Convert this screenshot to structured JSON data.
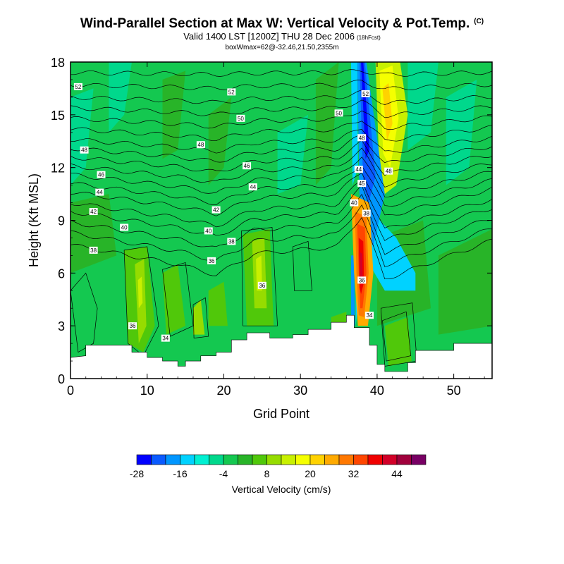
{
  "title": "Wind-Parallel Section at Max W: Vertical Velocity & Pot.Temp.",
  "title_tag": "(C)",
  "subtitle": "Valid 1400 LST [1200Z] THU 28 Dec 2006",
  "subtitle_small": "(18hFcst)",
  "info_line": "boxWmax=62@-32.46,21.50,2355m",
  "chart_data": {
    "type": "heatmap",
    "xlabel": "Grid Point",
    "ylabel": "Height (Kft MSL)",
    "xlim": [
      0,
      55
    ],
    "ylim": [
      0,
      18
    ],
    "x_ticks": [
      0,
      10,
      20,
      30,
      40,
      50
    ],
    "y_ticks": [
      0,
      3,
      6,
      9,
      12,
      15,
      18
    ],
    "colorbar": {
      "label": "Vertical Velocity (cm/s)",
      "tick_labels": [
        "-28",
        "-16",
        "-4",
        "8",
        "20",
        "32",
        "44"
      ],
      "colors": [
        "#0000ff",
        "#0a5aff",
        "#0096ff",
        "#00d2ff",
        "#00f0d2",
        "#00d88c",
        "#14c850",
        "#28b428",
        "#50c80a",
        "#96dc00",
        "#c8f000",
        "#f5ff00",
        "#ffd200",
        "#ffaa00",
        "#ff7800",
        "#ff4600",
        "#f00000",
        "#d20028",
        "#a0003c",
        "#780064"
      ]
    },
    "contour_series_name": "Potential Temperature",
    "contour_labels": [
      {
        "text": "52",
        "x": 1,
        "y": 16.6
      },
      {
        "text": "52",
        "x": 21,
        "y": 16.3
      },
      {
        "text": "50",
        "x": 22.2,
        "y": 14.8
      },
      {
        "text": "50",
        "x": 35,
        "y": 15.1
      },
      {
        "text": "52",
        "x": 38.5,
        "y": 16.2
      },
      {
        "text": "48",
        "x": 1.8,
        "y": 13
      },
      {
        "text": "48",
        "x": 17,
        "y": 13.3
      },
      {
        "text": "48",
        "x": 38,
        "y": 13.7
      },
      {
        "text": "46",
        "x": 4,
        "y": 11.6
      },
      {
        "text": "46",
        "x": 23,
        "y": 12.1
      },
      {
        "text": "44",
        "x": 3.8,
        "y": 10.6
      },
      {
        "text": "44",
        "x": 23.8,
        "y": 10.9
      },
      {
        "text": "44",
        "x": 37.6,
        "y": 11.9
      },
      {
        "text": "48",
        "x": 41.5,
        "y": 11.8
      },
      {
        "text": "45",
        "x": 38,
        "y": 11.1
      },
      {
        "text": "42",
        "x": 3,
        "y": 9.5
      },
      {
        "text": "42",
        "x": 19,
        "y": 9.6
      },
      {
        "text": "40",
        "x": 7,
        "y": 8.6
      },
      {
        "text": "40",
        "x": 18,
        "y": 8.4
      },
      {
        "text": "40",
        "x": 37,
        "y": 10
      },
      {
        "text": "38",
        "x": 38.6,
        "y": 9.4
      },
      {
        "text": "38",
        "x": 3,
        "y": 7.3
      },
      {
        "text": "38",
        "x": 21,
        "y": 7.8
      },
      {
        "text": "36",
        "x": 18.4,
        "y": 6.7
      },
      {
        "text": "36",
        "x": 25,
        "y": 5.3
      },
      {
        "text": "36",
        "x": 38,
        "y": 5.6
      },
      {
        "text": "36",
        "x": 8.1,
        "y": 3
      },
      {
        "text": "34",
        "x": 12.4,
        "y": 2.3
      },
      {
        "text": "34",
        "x": 39,
        "y": 3.6
      }
    ]
  }
}
